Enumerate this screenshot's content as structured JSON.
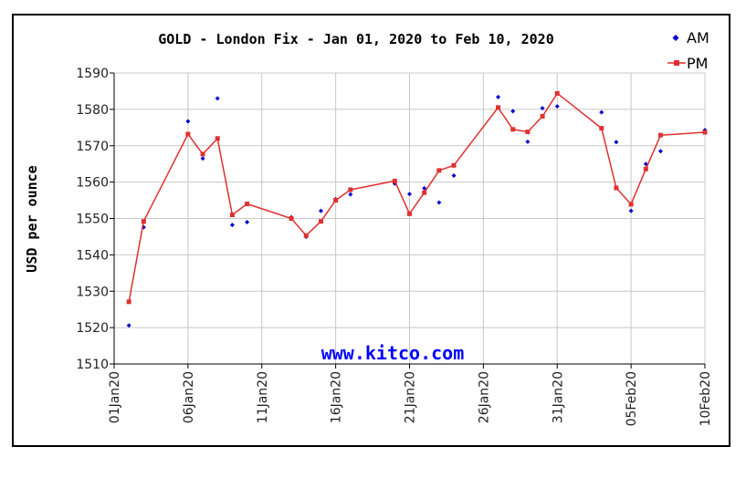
{
  "chart_data": {
    "type": "line",
    "title": "GOLD - London Fix - Jan 01, 2020 to Feb 10, 2020",
    "ylabel": "USD per ounce",
    "watermark": "www.kitco.com",
    "ylim": [
      1510,
      1590
    ],
    "yticks": [
      1510,
      1520,
      1530,
      1540,
      1550,
      1560,
      1570,
      1580,
      1590
    ],
    "xlim": [
      "2020-01-01",
      "2020-02-10"
    ],
    "xticks": [
      {
        "date": "2020-01-01",
        "label": "01Jan20"
      },
      {
        "date": "2020-01-06",
        "label": "06Jan20"
      },
      {
        "date": "2020-01-11",
        "label": "11Jan20"
      },
      {
        "date": "2020-01-16",
        "label": "16Jan20"
      },
      {
        "date": "2020-01-21",
        "label": "21Jan20"
      },
      {
        "date": "2020-01-26",
        "label": "26Jan20"
      },
      {
        "date": "2020-01-31",
        "label": "31Jan20"
      },
      {
        "date": "2020-02-05",
        "label": "05Feb20"
      },
      {
        "date": "2020-02-10",
        "label": "10Feb20"
      }
    ],
    "grid": true,
    "legend_position": "top-right",
    "series": [
      {
        "name": "AM",
        "style": "markers",
        "color": "#0000cc",
        "points": [
          {
            "x": "2020-01-02",
            "y": 1520.6
          },
          {
            "x": "2020-01-03",
            "y": 1547.6
          },
          {
            "x": "2020-01-06",
            "y": 1576.7
          },
          {
            "x": "2020-01-07",
            "y": 1566.5
          },
          {
            "x": "2020-01-08",
            "y": 1583.0
          },
          {
            "x": "2020-01-09",
            "y": 1548.2
          },
          {
            "x": "2020-01-10",
            "y": 1549.0
          },
          {
            "x": "2020-01-13",
            "y": 1550.3
          },
          {
            "x": "2020-01-14",
            "y": 1545.0
          },
          {
            "x": "2020-01-15",
            "y": 1552.1
          },
          {
            "x": "2020-01-16",
            "y": 1555.3
          },
          {
            "x": "2020-01-17",
            "y": 1556.6
          },
          {
            "x": "2020-01-20",
            "y": 1559.6
          },
          {
            "x": "2020-01-21",
            "y": 1556.7
          },
          {
            "x": "2020-01-22",
            "y": 1558.3
          },
          {
            "x": "2020-01-23",
            "y": 1554.4
          },
          {
            "x": "2020-01-24",
            "y": 1561.8
          },
          {
            "x": "2020-01-27",
            "y": 1583.4
          },
          {
            "x": "2020-01-28",
            "y": 1579.5
          },
          {
            "x": "2020-01-29",
            "y": 1571.1
          },
          {
            "x": "2020-01-30",
            "y": 1580.3
          },
          {
            "x": "2020-01-31",
            "y": 1580.8
          },
          {
            "x": "2020-02-03",
            "y": 1579.2
          },
          {
            "x": "2020-02-04",
            "y": 1571.0
          },
          {
            "x": "2020-02-05",
            "y": 1552.1
          },
          {
            "x": "2020-02-06",
            "y": 1565.0
          },
          {
            "x": "2020-02-07",
            "y": 1568.5
          },
          {
            "x": "2020-02-10",
            "y": 1574.3
          }
        ]
      },
      {
        "name": "PM",
        "style": "line-squares",
        "color": "#e03030",
        "points": [
          {
            "x": "2020-01-02",
            "y": 1527.1
          },
          {
            "x": "2020-01-03",
            "y": 1549.2
          },
          {
            "x": "2020-01-06",
            "y": 1573.2
          },
          {
            "x": "2020-01-07",
            "y": 1567.7
          },
          {
            "x": "2020-01-08",
            "y": 1572.0
          },
          {
            "x": "2020-01-09",
            "y": 1551.0
          },
          {
            "x": "2020-01-10",
            "y": 1554.0
          },
          {
            "x": "2020-01-13",
            "y": 1550.0
          },
          {
            "x": "2020-01-14",
            "y": 1545.3
          },
          {
            "x": "2020-01-15",
            "y": 1549.2
          },
          {
            "x": "2020-01-16",
            "y": 1555.0
          },
          {
            "x": "2020-01-17",
            "y": 1557.9
          },
          {
            "x": "2020-01-20",
            "y": 1560.3
          },
          {
            "x": "2020-01-21",
            "y": 1551.3
          },
          {
            "x": "2020-01-22",
            "y": 1557.1
          },
          {
            "x": "2020-01-23",
            "y": 1563.2
          },
          {
            "x": "2020-01-24",
            "y": 1564.6
          },
          {
            "x": "2020-01-27",
            "y": 1580.5
          },
          {
            "x": "2020-01-28",
            "y": 1574.5
          },
          {
            "x": "2020-01-29",
            "y": 1573.8
          },
          {
            "x": "2020-01-30",
            "y": 1578.1
          },
          {
            "x": "2020-01-31",
            "y": 1584.4
          },
          {
            "x": "2020-02-03",
            "y": 1574.8
          },
          {
            "x": "2020-02-04",
            "y": 1558.4
          },
          {
            "x": "2020-02-05",
            "y": 1553.9
          },
          {
            "x": "2020-02-06",
            "y": 1563.6
          },
          {
            "x": "2020-02-07",
            "y": 1572.9
          },
          {
            "x": "2020-02-10",
            "y": 1573.7
          }
        ]
      }
    ]
  }
}
